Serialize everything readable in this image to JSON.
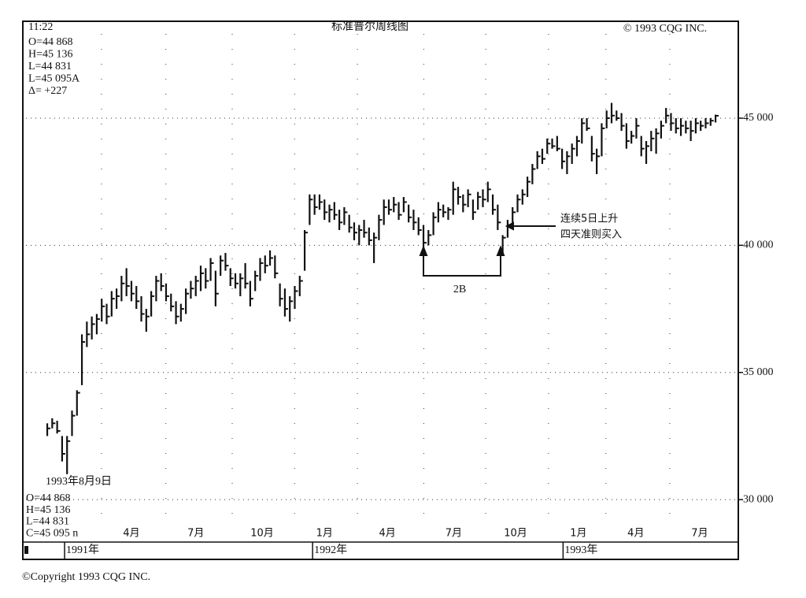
{
  "chart_data": {
    "type": "ohlc",
    "title": "标准普尔周线图",
    "time": "11:22",
    "copyright": "© 1993 CQG INC.",
    "readout_top": [
      "O=44 868",
      "H=45 136",
      "L=44 831",
      "L=45 095A",
      "Δ=   +227"
    ],
    "readout_date": "1993年8月9日",
    "readout_bottom": [
      "O=44 868",
      "H=45 136",
      "L=44 831",
      "C=45 095 n"
    ],
    "annotations": [
      "连续5日上升",
      "四天准则买入",
      "2B"
    ],
    "footer": "©Copyright 1993 CQG INC.",
    "grid": true,
    "ylim": [
      28950,
      48810
    ],
    "yticks": [
      {
        "value": 30000,
        "label": "30 000"
      },
      {
        "value": 35000,
        "label": "35 000"
      },
      {
        "value": 40000,
        "label": "40 000"
      },
      {
        "value": 45000,
        "label": "45 000"
      }
    ],
    "xlim": [
      -8.3,
      135.6
    ],
    "xticks": [
      {
        "value": 13,
        "label": "4月"
      },
      {
        "value": 26,
        "label": "7月"
      },
      {
        "value": 39.4,
        "label": "10月"
      },
      {
        "value": 52,
        "label": "1月"
      },
      {
        "value": 64.7,
        "label": "4月"
      },
      {
        "value": 78.1,
        "label": "7月"
      },
      {
        "value": 90.6,
        "label": "10月"
      },
      {
        "value": 103.3,
        "label": "1月"
      },
      {
        "value": 114.9,
        "label": "4月"
      },
      {
        "value": 127.8,
        "label": "7月"
      }
    ],
    "year_ticks": [
      {
        "value": -0.5,
        "label": "1991年"
      },
      {
        "value": 49.6,
        "label": "1992年"
      },
      {
        "value": 100.2,
        "label": "1993年"
      }
    ],
    "x": [
      -4,
      -3,
      -2,
      -1,
      0,
      1,
      2,
      3,
      4,
      5,
      6,
      7,
      8,
      9,
      10,
      11,
      12,
      13,
      14,
      15,
      16,
      17,
      18,
      19,
      20,
      21,
      22,
      23,
      24,
      25,
      26,
      27,
      28,
      29,
      30,
      31,
      32,
      33,
      34,
      35,
      36,
      37,
      38,
      39,
      40,
      41,
      42,
      43,
      44,
      45,
      46,
      47,
      48,
      49,
      50,
      51,
      52,
      53,
      54,
      55,
      56,
      57,
      58,
      59,
      60,
      61,
      62,
      63,
      64,
      65,
      66,
      67,
      68,
      69,
      70,
      71,
      72,
      73,
      74,
      75,
      76,
      77,
      78,
      79,
      80,
      81,
      82,
      83,
      84,
      85,
      86,
      87,
      88,
      89,
      90,
      91,
      92,
      93,
      94,
      95,
      96,
      97,
      98,
      99,
      100,
      101,
      102,
      103,
      104,
      105,
      106,
      107,
      108,
      109,
      110,
      111,
      112,
      113,
      114,
      115,
      116,
      117,
      118,
      119,
      120,
      121,
      122,
      123,
      124,
      125,
      126,
      127,
      128,
      129,
      130,
      131
    ],
    "series": [
      {
        "color": "#111111",
        "low": [
          32500,
          32800,
          32600,
          31500,
          31000,
          32500,
          33300,
          34500,
          36000,
          36300,
          36500,
          37000,
          36900,
          37200,
          37500,
          37800,
          38000,
          37800,
          37500,
          37000,
          36600,
          37200,
          37800,
          38200,
          37800,
          37400,
          36900,
          37000,
          37300,
          37900,
          38000,
          38200,
          38300,
          38600,
          37600,
          38800,
          39000,
          38400,
          38300,
          38000,
          38300,
          37600,
          38200,
          38600,
          38900,
          39200,
          38700,
          37600,
          37200,
          37000,
          37500,
          38000,
          39000,
          40800,
          41200,
          41400,
          41000,
          40900,
          41000,
          40600,
          40800,
          40500,
          40200,
          40000,
          40300,
          40000,
          39300,
          40200,
          40800,
          41200,
          41300,
          41000,
          41300,
          40900,
          40600,
          40400,
          39900,
          40000,
          40400,
          40900,
          41100,
          41000,
          41200,
          41600,
          41300,
          41500,
          41000,
          41400,
          41500,
          41700,
          41200,
          40600,
          39600,
          40300,
          40800,
          41300,
          41600,
          41900,
          42400,
          43000,
          43200,
          43600,
          43800,
          43700,
          43000,
          42800,
          43200,
          43500,
          44000,
          44500,
          43300,
          42800,
          43500,
          44600,
          44800,
          44900,
          44500,
          43800,
          44000,
          44200,
          43500,
          43200,
          43700,
          43600,
          44200,
          44800,
          44500,
          44400,
          44300,
          44400,
          44100,
          44400,
          44500,
          44600,
          44700,
          44831
        ],
        "high": [
          33000,
          33200,
          33100,
          32500,
          32500,
          33500,
          34300,
          36500,
          37000,
          37200,
          37300,
          37900,
          37700,
          38200,
          38300,
          38800,
          39100,
          38600,
          38400,
          38000,
          37500,
          38200,
          38800,
          38900,
          38500,
          38100,
          37800,
          37700,
          38300,
          38600,
          38800,
          39200,
          39100,
          39500,
          39000,
          39600,
          39700,
          39100,
          38900,
          38900,
          39300,
          38600,
          39000,
          39500,
          39600,
          39800,
          39600,
          38500,
          38300,
          38000,
          38400,
          38800,
          40600,
          42000,
          42000,
          42000,
          41800,
          41600,
          41700,
          41400,
          41500,
          41200,
          40900,
          40800,
          41000,
          40700,
          40500,
          41200,
          41800,
          41800,
          41900,
          41700,
          41900,
          41600,
          41400,
          41100,
          40800,
          40600,
          41300,
          41700,
          41600,
          41500,
          42500,
          42300,
          42000,
          42200,
          41800,
          42100,
          42200,
          42500,
          42000,
          41600,
          40400,
          41000,
          41500,
          42000,
          42200,
          42700,
          43200,
          43700,
          43800,
          44200,
          44200,
          44300,
          43800,
          43700,
          44000,
          44300,
          45000,
          45000,
          44300,
          43800,
          44800,
          45300,
          45600,
          45300,
          45200,
          44800,
          44500,
          45000,
          44300,
          44100,
          44500,
          44600,
          44900,
          45400,
          45200,
          45000,
          45000,
          44900,
          44900,
          45000,
          44900,
          45000,
          45000,
          45136
        ],
        "close": [
          32800,
          33000,
          32700,
          31800,
          32300,
          33300,
          34200,
          36200,
          36500,
          36900,
          37100,
          37600,
          37200,
          37900,
          38000,
          38500,
          38400,
          38100,
          37800,
          37300,
          37200,
          38000,
          38600,
          38400,
          38000,
          37600,
          37200,
          37500,
          38100,
          38300,
          38600,
          38900,
          38600,
          39300,
          38100,
          39400,
          39200,
          38700,
          38500,
          38700,
          38500,
          37900,
          38800,
          39300,
          39200,
          39500,
          38900,
          37900,
          37500,
          37800,
          38200,
          38600,
          40500,
          41800,
          41500,
          41700,
          41300,
          41400,
          41200,
          40900,
          41300,
          40700,
          40500,
          40600,
          40500,
          40200,
          40300,
          41000,
          41500,
          41400,
          41600,
          41200,
          41700,
          41100,
          40900,
          40600,
          40100,
          40400,
          41100,
          41400,
          41300,
          41400,
          42200,
          41900,
          41600,
          42000,
          41300,
          41900,
          41800,
          42200,
          41400,
          40900,
          40300,
          40800,
          41300,
          41800,
          42000,
          42500,
          43000,
          43500,
          43400,
          44000,
          43900,
          43800,
          43300,
          43500,
          43800,
          44100,
          44800,
          44600,
          43600,
          43500,
          44600,
          45000,
          45100,
          45000,
          44700,
          44100,
          44300,
          44700,
          43800,
          43900,
          44200,
          44400,
          44700,
          45100,
          44800,
          44600,
          44700,
          44600,
          44500,
          44800,
          44700,
          44800,
          44900,
          45095
        ]
      }
    ]
  }
}
